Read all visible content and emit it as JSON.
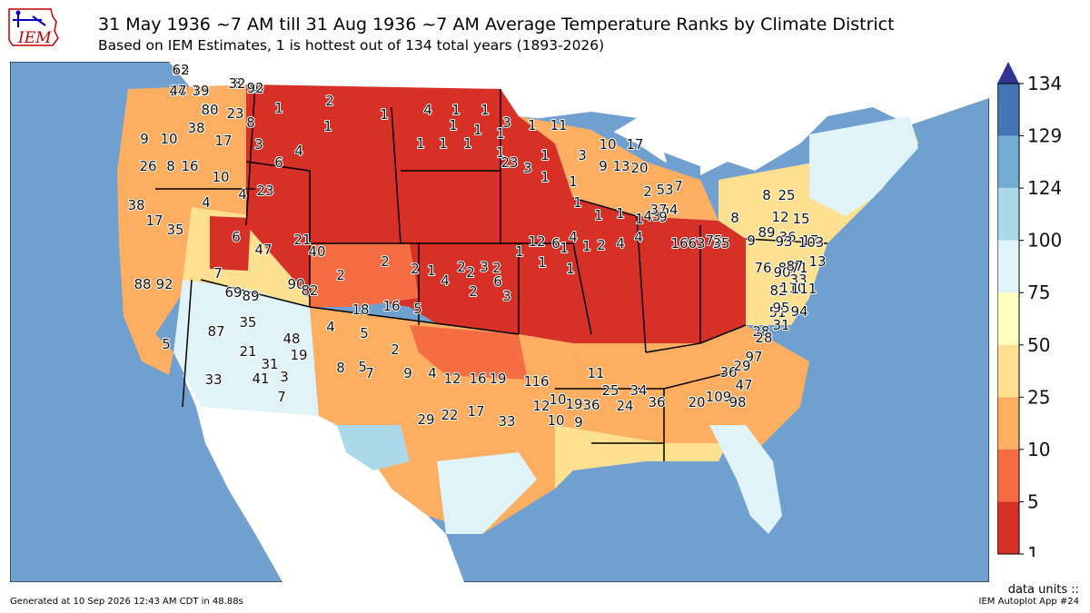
{
  "header": {
    "logo_text": "IEM",
    "title": "31 May 1936 ~7 AM till 31 Aug 1936 ~7 AM Average Temperature Ranks by Climate District",
    "subtitle": "Based on IEM Estimates, 1 is hottest out of 134 total years (1893-2026)"
  },
  "colorbar": {
    "ticks": [
      "134",
      "129",
      "124",
      "100",
      "75",
      "50",
      "25",
      "10",
      "5",
      "1"
    ],
    "bins": [
      {
        "color": "#4575b4"
      },
      {
        "color": "#74add1"
      },
      {
        "color": "#abd9e9"
      },
      {
        "color": "#e0f3f8"
      },
      {
        "color": "#ffffbf"
      },
      {
        "color": "#fee090"
      },
      {
        "color": "#fdae61"
      },
      {
        "color": "#f46d43"
      },
      {
        "color": "#d73027"
      }
    ],
    "overflow_color": "#313695"
  },
  "map": {
    "ocean_color": "#6fa0d0",
    "land_outside_color": "#ffffff",
    "ranks": [
      "15",
      "14",
      "15",
      "8",
      "10",
      "58",
      "23",
      "38",
      "17",
      "9",
      "10",
      "26",
      "8",
      "16",
      "10",
      "8",
      "3",
      "6",
      "4",
      "23",
      "4",
      "2",
      "1",
      "1",
      "1",
      "4",
      "1",
      "1",
      "3",
      "1",
      "1",
      "1",
      "1",
      "1",
      "1",
      "1",
      "1",
      "11",
      "23",
      "3",
      "1",
      "1",
      "1",
      "1",
      "1",
      "1",
      "1",
      "2",
      "3",
      "9",
      "13",
      "10",
      "17",
      "20",
      "53",
      "64",
      "43",
      "37",
      "7",
      "38",
      "17",
      "35",
      "4",
      "6",
      "47",
      "21",
      "40",
      "7",
      "2",
      "2",
      "2",
      "1",
      "2",
      "2",
      "1",
      "1",
      "1",
      "1",
      "1",
      "2",
      "4",
      "4",
      "9",
      "8",
      "8",
      "25",
      "12",
      "36",
      "15",
      "17",
      "13",
      "33",
      "69",
      "89",
      "90",
      "82",
      "18",
      "16",
      "5",
      "4",
      "2",
      "2",
      "3",
      "6",
      "3",
      "12",
      "6",
      "4",
      "16",
      "63",
      "75",
      "35",
      "9",
      "89",
      "93",
      "83",
      "71",
      "76",
      "88",
      "92",
      "87",
      "35",
      "48",
      "21",
      "31",
      "19",
      "3",
      "33",
      "41",
      "7",
      "5",
      "4",
      "5",
      "2",
      "5",
      "8",
      "7",
      "9",
      "4",
      "12",
      "16",
      "19",
      "29",
      "22",
      "17",
      "33",
      "11",
      "10",
      "9",
      "11",
      "10",
      "12",
      "16",
      "19",
      "36",
      "25",
      "24",
      "34",
      "36",
      "20",
      "109",
      "36",
      "98",
      "97",
      "28",
      "29",
      "47",
      "28",
      "31",
      "51",
      "94",
      "95",
      "82",
      "90",
      "110",
      "111",
      "87",
      "103",
      "62",
      "47",
      "39",
      "32",
      "92",
      "80"
    ],
    "states": [
      {
        "name": "WA",
        "rank_color": "#fdae61"
      },
      {
        "name": "MT",
        "rank_color": "#d73027"
      },
      {
        "name": "ND",
        "rank_color": "#d73027"
      }
    ]
  },
  "footer": {
    "generated": "Generated at 10 Sep 2026 12:43 AM CDT in 48.88s",
    "data_units": "data units ::",
    "app": "IEM Autoplot App #24"
  }
}
